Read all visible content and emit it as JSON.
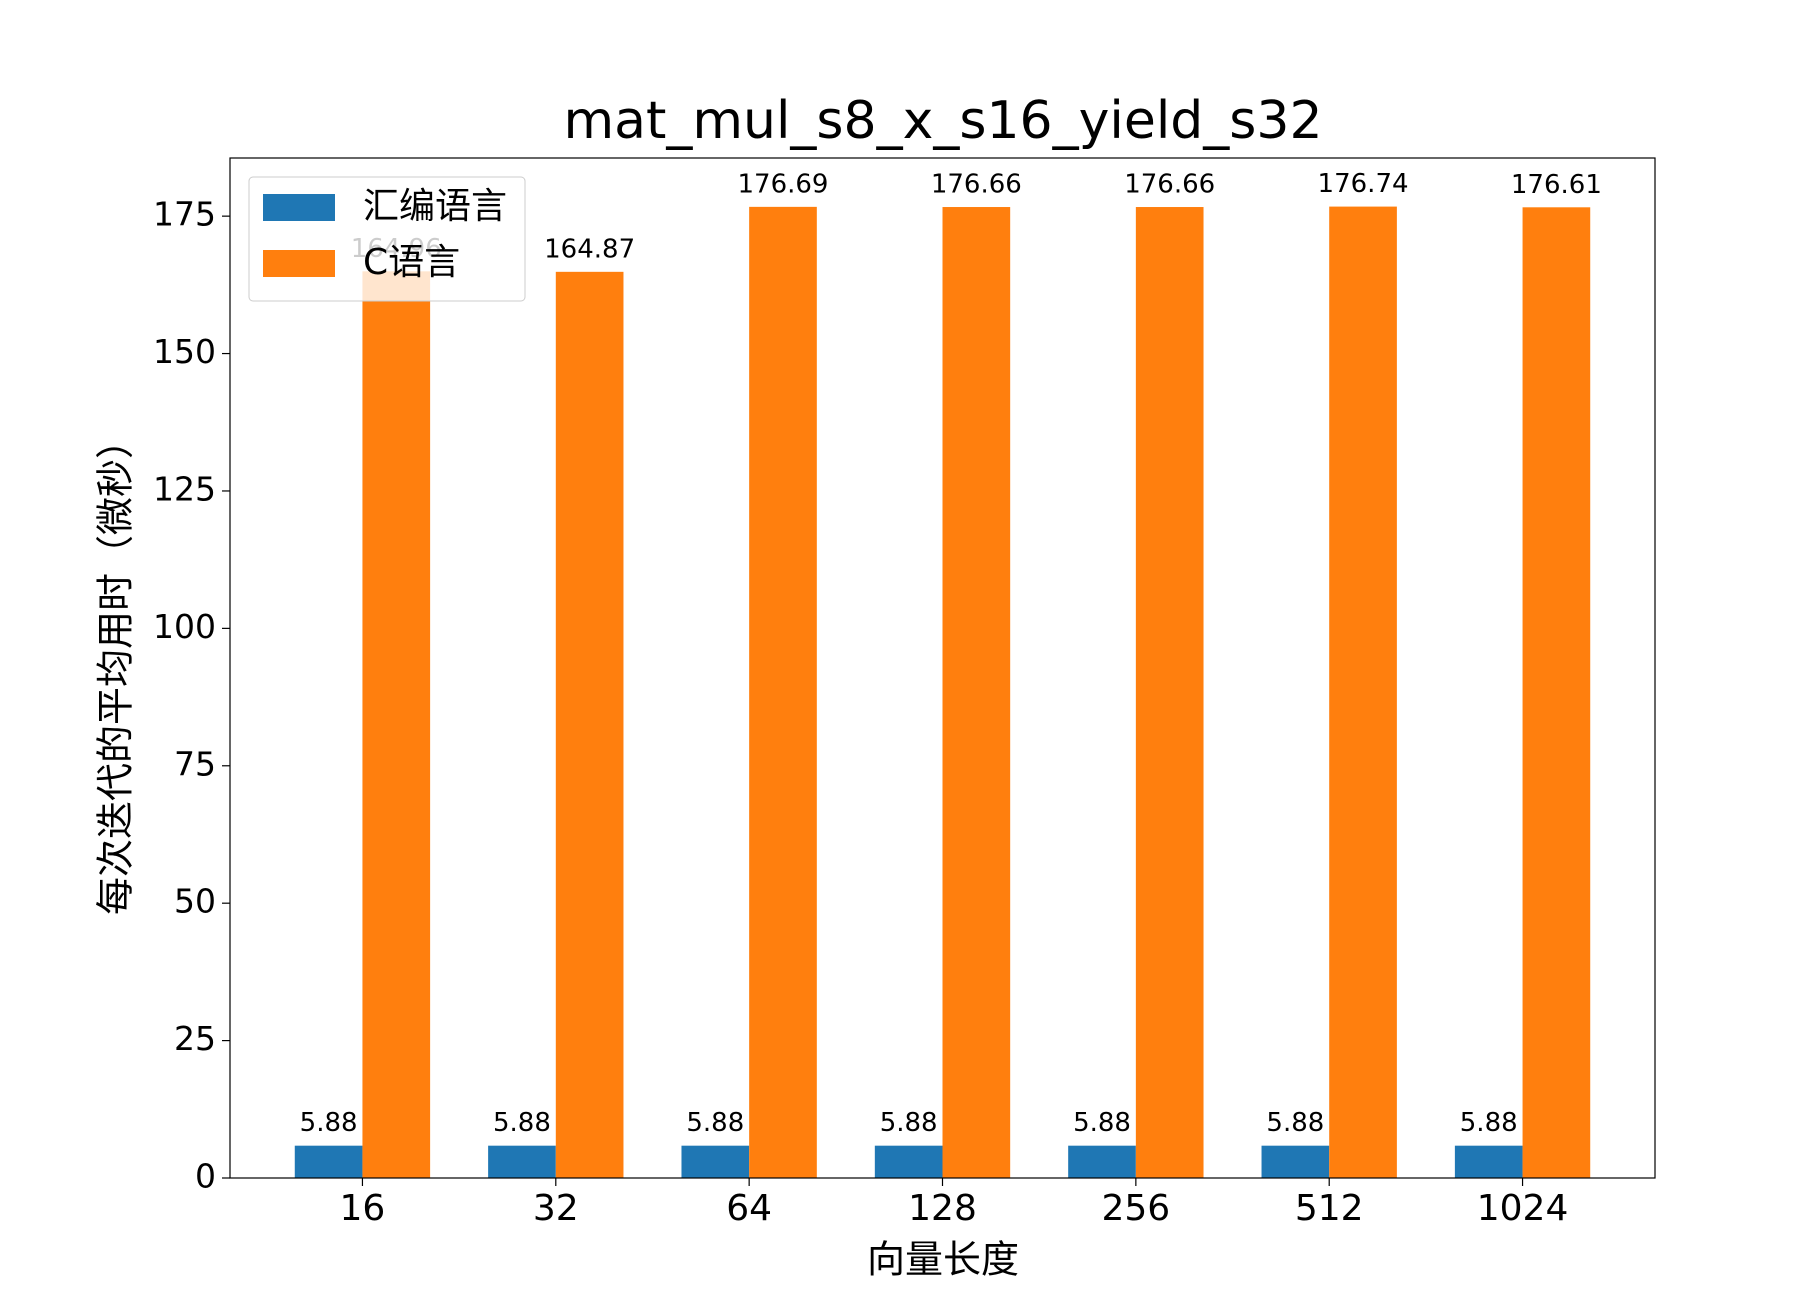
{
  "chart_data": {
    "type": "bar",
    "title": "mat_mul_s8_x_s16_yield_s32",
    "x_label": "向量长度",
    "y_label": "每次迭代的平均用时（微秒）",
    "categories": [
      "16",
      "32",
      "64",
      "128",
      "256",
      "512",
      "1024"
    ],
    "series": [
      {
        "name": "汇编语言",
        "color": "#1f77b4",
        "values": [
          5.88,
          5.88,
          5.88,
          5.88,
          5.88,
          5.88,
          5.88
        ]
      },
      {
        "name": "C语言",
        "color": "#ff7f0e",
        "values": [
          164.96,
          164.87,
          176.69,
          176.66,
          176.66,
          176.74,
          176.61
        ]
      }
    ],
    "ylim": [
      0,
      185.58
    ],
    "yticks": [
      0,
      25,
      50,
      75,
      100,
      125,
      150,
      175
    ],
    "legend": "upper left"
  }
}
